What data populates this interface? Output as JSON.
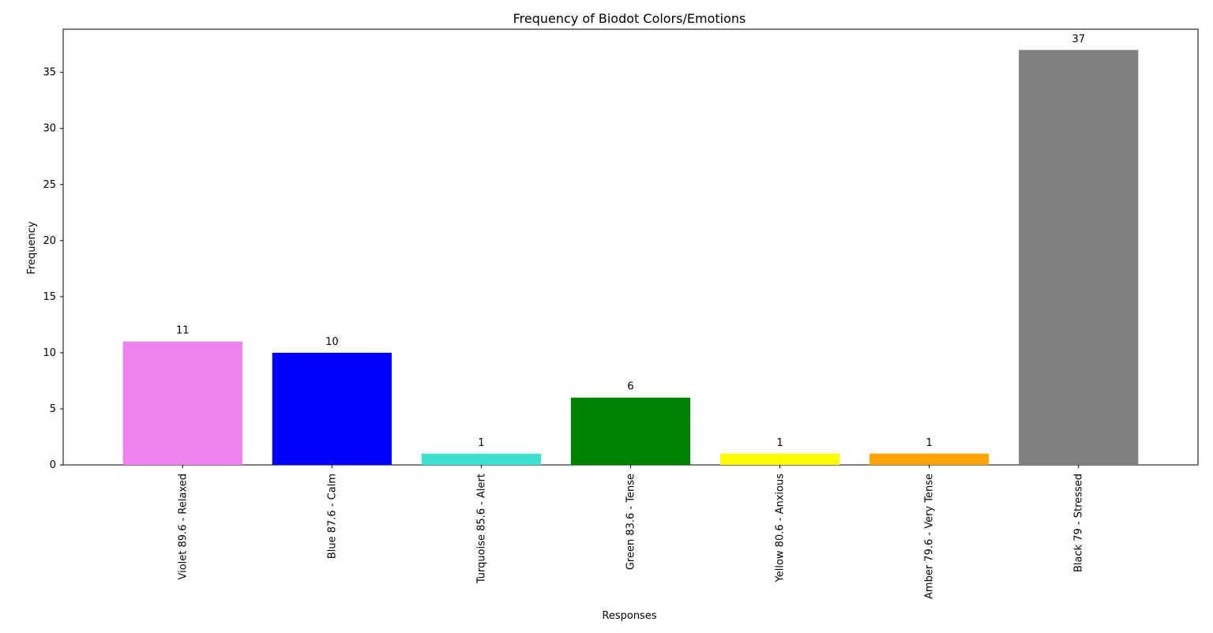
{
  "chart_data": {
    "type": "bar",
    "title": "Frequency of Biodot Colors/Emotions",
    "xlabel": "Responses",
    "ylabel": "Frequency",
    "categories": [
      "Violet 89.6 - Relaxed",
      "Blue 87.6 - Calm",
      "Turquoise 85.6 - Alert",
      "Green 83.6 - Tense",
      "Yellow 80.6 - Anxious",
      "Amber 79.6 - Very Tense",
      "Black 79 - Stressed"
    ],
    "values": [
      11,
      10,
      1,
      6,
      1,
      1,
      37
    ],
    "value_labels": [
      "11",
      "10",
      "1",
      "6",
      "1",
      "1",
      "37"
    ],
    "colors": [
      "#ee82ee",
      "#0000ff",
      "#40e0d0",
      "#008000",
      "#ffff00",
      "#ffa500",
      "#808080"
    ],
    "ylim": [
      0,
      38.85
    ],
    "yticks": [
      0,
      5,
      10,
      15,
      20,
      25,
      30,
      35
    ],
    "grid": false,
    "legend": false
  }
}
